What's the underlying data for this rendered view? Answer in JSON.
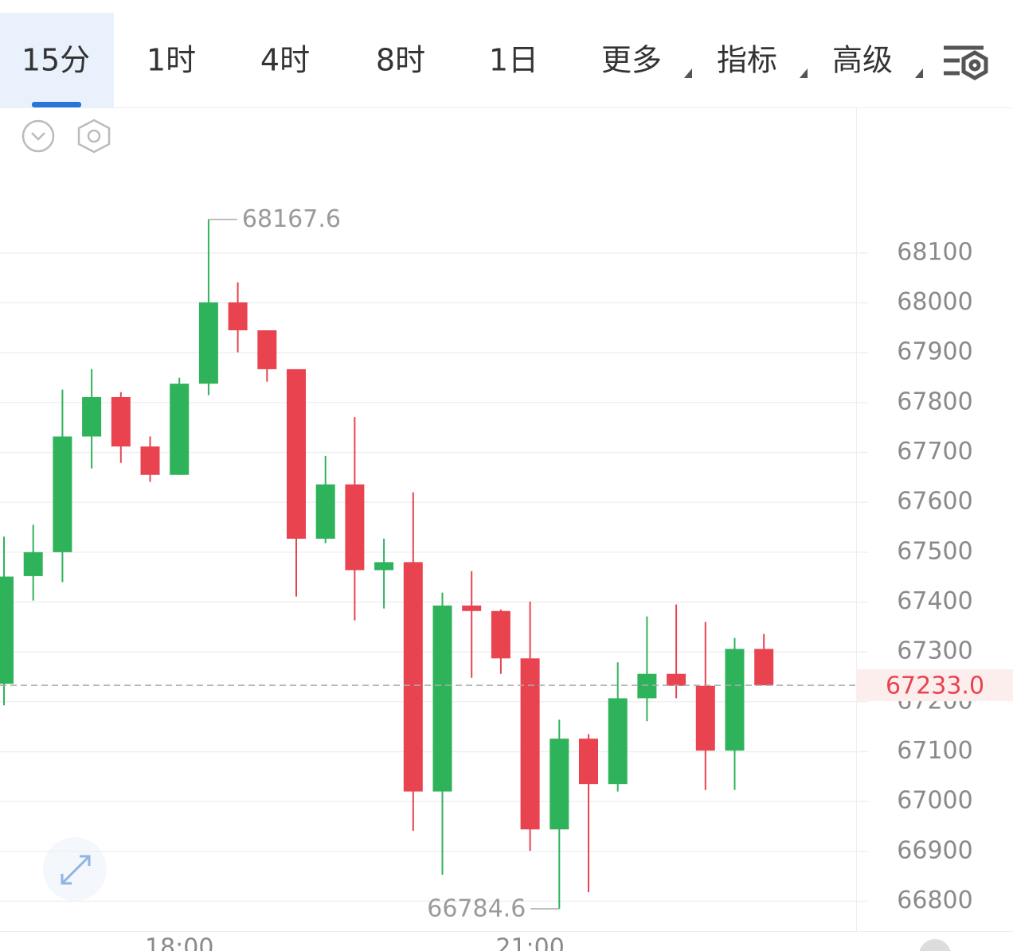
{
  "tabs": [
    "15分",
    "1时",
    "4时",
    "8时",
    "1日",
    "更多",
    "指标",
    "高级"
  ],
  "active_tab": 0,
  "chart_data": {
    "type": "candlestick",
    "categories": [
      null,
      null,
      null,
      null,
      null,
      null,
      "18:00",
      null,
      null,
      null,
      null,
      null,
      null,
      null,
      null,
      null,
      null,
      null,
      "21:00",
      null,
      null,
      null,
      null,
      null,
      null,
      null,
      null
    ],
    "open": [
      67236,
      67452,
      67500,
      67732,
      67811,
      67712,
      67655,
      67838,
      68001,
      67945,
      67867,
      67527,
      67636,
      67464,
      67480,
      67020,
      67393,
      67382,
      67287,
      66944,
      67126,
      67035,
      67207,
      67256,
      67232,
      67102,
      67306
    ],
    "high": [
      67531,
      67555,
      67826,
      67867,
      67821,
      67732,
      67850,
      68167.6,
      68041,
      67945,
      67867,
      67693,
      67771,
      67527,
      67620,
      67419,
      67462,
      67385,
      67401,
      67164,
      67135,
      67279,
      67371,
      67395,
      67360,
      67328,
      67336
    ],
    "low": [
      67193,
      67403,
      67440,
      67668,
      67679,
      67641,
      67655,
      67815,
      67901,
      67842,
      67411,
      67518,
      67363,
      67387,
      66941,
      66853,
      67248,
      67256,
      66901,
      66784.6,
      66818,
      67020,
      67161,
      67207,
      67023,
      67023,
      67233
    ],
    "close": [
      67451,
      67500,
      67732,
      67811,
      67712,
      67655,
      67838,
      68001,
      67945,
      67867,
      67527,
      67636,
      67464,
      67480,
      67020,
      67393,
      67382,
      67287,
      66944,
      67126,
      67035,
      67207,
      67256,
      67232,
      67102,
      67306,
      67233
    ],
    "up_color": "#2fb35a",
    "down_color": "#e8434f",
    "ylim": [
      66740,
      68392
    ],
    "yticks": [
      66800,
      66900,
      67000,
      67100,
      67200,
      67300,
      67400,
      67500,
      67600,
      67700,
      67800,
      67900,
      68000,
      68100
    ],
    "grid": true,
    "last_price": {
      "value": 67233,
      "label": "67233.0"
    },
    "high_mark_index": 7,
    "low_mark_index": 19
  }
}
